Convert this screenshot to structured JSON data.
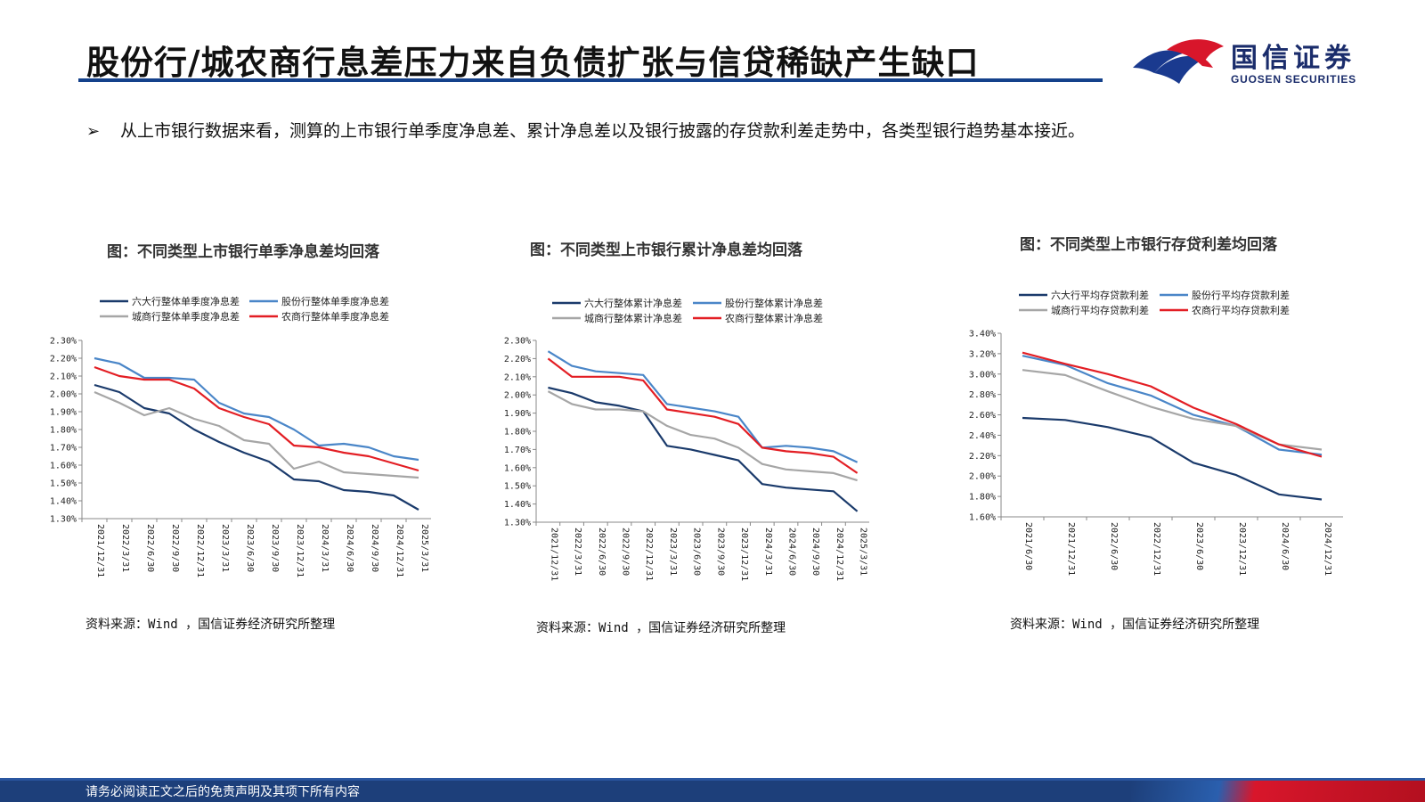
{
  "header": {
    "title": "股份行/城农商行息差压力来自负债扩张与信贷稀缺产生缺口",
    "logo_cn": "国信证券",
    "logo_en": "GUOSEN SECURITIES"
  },
  "bullet": {
    "text": "从上市银行数据来看，测算的上市银行单季度净息差、累计净息差以及银行披露的存贷款利差走势中，各类型银行趋势基本接近。"
  },
  "footer": {
    "disclaimer": "请务必阅读正文之后的免责声明及其项下所有内容"
  },
  "colors": {
    "brand_blue": "#1d3f7a",
    "brand_red": "#d8162b",
    "series": [
      "#1a3a6b",
      "#4a86c8",
      "#a6a6a6",
      "#e31e24"
    ]
  },
  "chart_data": [
    {
      "type": "line",
      "title": "图：不同类型上市银行单季净息差均回落",
      "source": "资料来源：Wind ，国信证券经济研究所整理",
      "x": [
        "2021/12/31",
        "2022/3/31",
        "2022/6/30",
        "2022/9/30",
        "2022/12/31",
        "2023/3/31",
        "2023/6/30",
        "2023/9/30",
        "2023/12/31",
        "2024/3/31",
        "2024/6/30",
        "2024/9/30",
        "2024/12/31",
        "2025/3/31"
      ],
      "ylim": [
        1.3,
        2.3
      ],
      "yticks": [
        "1.30%",
        "1.40%",
        "1.50%",
        "1.60%",
        "1.70%",
        "1.80%",
        "1.90%",
        "2.00%",
        "2.10%",
        "2.20%",
        "2.30%"
      ],
      "legend": "top, 2 columns",
      "series": [
        {
          "name": "六大行整体单季度净息差",
          "values": [
            2.05,
            2.01,
            1.92,
            1.89,
            1.8,
            1.73,
            1.67,
            1.62,
            1.52,
            1.51,
            1.46,
            1.45,
            1.43,
            1.35
          ]
        },
        {
          "name": "股份行整体单季度净息差",
          "values": [
            2.2,
            2.17,
            2.09,
            2.09,
            2.08,
            1.95,
            1.89,
            1.87,
            1.8,
            1.71,
            1.72,
            1.7,
            1.65,
            1.63
          ]
        },
        {
          "name": "城商行整体单季度净息差",
          "values": [
            2.01,
            1.95,
            1.88,
            1.92,
            1.86,
            1.82,
            1.74,
            1.72,
            1.58,
            1.62,
            1.56,
            1.55,
            1.54,
            1.53
          ]
        },
        {
          "name": "农商行整体单季度净息差",
          "values": [
            2.15,
            2.1,
            2.08,
            2.08,
            2.03,
            1.92,
            1.87,
            1.83,
            1.71,
            1.7,
            1.67,
            1.65,
            1.61,
            1.57
          ]
        }
      ]
    },
    {
      "type": "line",
      "title": "图：不同类型上市银行累计净息差均回落",
      "source": "资料来源：Wind ，国信证券经济研究所整理",
      "x": [
        "2021/12/31",
        "2022/3/31",
        "2022/6/30",
        "2022/9/30",
        "2022/12/31",
        "2023/3/31",
        "2023/6/30",
        "2023/9/30",
        "2023/12/31",
        "2024/3/31",
        "2024/6/30",
        "2024/9/30",
        "2024/12/31",
        "2025/3/31"
      ],
      "ylim": [
        1.3,
        2.3
      ],
      "yticks": [
        "1.30%",
        "1.40%",
        "1.50%",
        "1.60%",
        "1.70%",
        "1.80%",
        "1.90%",
        "2.00%",
        "2.10%",
        "2.20%",
        "2.30%"
      ],
      "legend": "top, 2 columns",
      "series": [
        {
          "name": "六大行整体累计净息差",
          "values": [
            2.04,
            2.01,
            1.96,
            1.94,
            1.91,
            1.72,
            1.7,
            1.67,
            1.64,
            1.51,
            1.49,
            1.48,
            1.47,
            1.36
          ]
        },
        {
          "name": "股份行整体累计净息差",
          "values": [
            2.24,
            2.16,
            2.13,
            2.12,
            2.11,
            1.95,
            1.93,
            1.91,
            1.88,
            1.71,
            1.72,
            1.71,
            1.69,
            1.63
          ]
        },
        {
          "name": "城商行整体累计净息差",
          "values": [
            2.02,
            1.95,
            1.92,
            1.92,
            1.91,
            1.83,
            1.78,
            1.76,
            1.71,
            1.62,
            1.59,
            1.58,
            1.57,
            1.53
          ]
        },
        {
          "name": "农商行整体累计净息差",
          "values": [
            2.2,
            2.1,
            2.1,
            2.1,
            2.08,
            1.92,
            1.9,
            1.88,
            1.84,
            1.71,
            1.69,
            1.68,
            1.66,
            1.57
          ]
        }
      ]
    },
    {
      "type": "line",
      "title": "图：不同类型上市银行存贷利差均回落",
      "source": "资料来源：Wind ，国信证券经济研究所整理",
      "x": [
        "2021/6/30",
        "2021/12/31",
        "2022/6/30",
        "2022/12/31",
        "2023/6/30",
        "2023/12/31",
        "2024/6/30",
        "2024/12/31"
      ],
      "ylim": [
        1.6,
        3.4
      ],
      "yticks": [
        "1.60%",
        "1.80%",
        "2.00%",
        "2.20%",
        "2.40%",
        "2.60%",
        "2.80%",
        "3.00%",
        "3.20%",
        "3.40%"
      ],
      "legend": "top, 2 columns",
      "series": [
        {
          "name": "六大行平均存贷款利差",
          "values": [
            2.57,
            2.55,
            2.48,
            2.38,
            2.13,
            2.01,
            1.82,
            1.77
          ]
        },
        {
          "name": "股份行平均存贷款利差",
          "values": [
            3.18,
            3.09,
            2.91,
            2.79,
            2.6,
            2.49,
            2.26,
            2.21
          ]
        },
        {
          "name": "城商行平均存贷款利差",
          "values": [
            3.04,
            2.99,
            2.83,
            2.68,
            2.56,
            2.49,
            2.31,
            2.26
          ]
        },
        {
          "name": "农商行平均存贷款利差",
          "values": [
            3.21,
            3.1,
            3.0,
            2.88,
            2.67,
            2.51,
            2.31,
            2.19
          ]
        }
      ]
    }
  ]
}
